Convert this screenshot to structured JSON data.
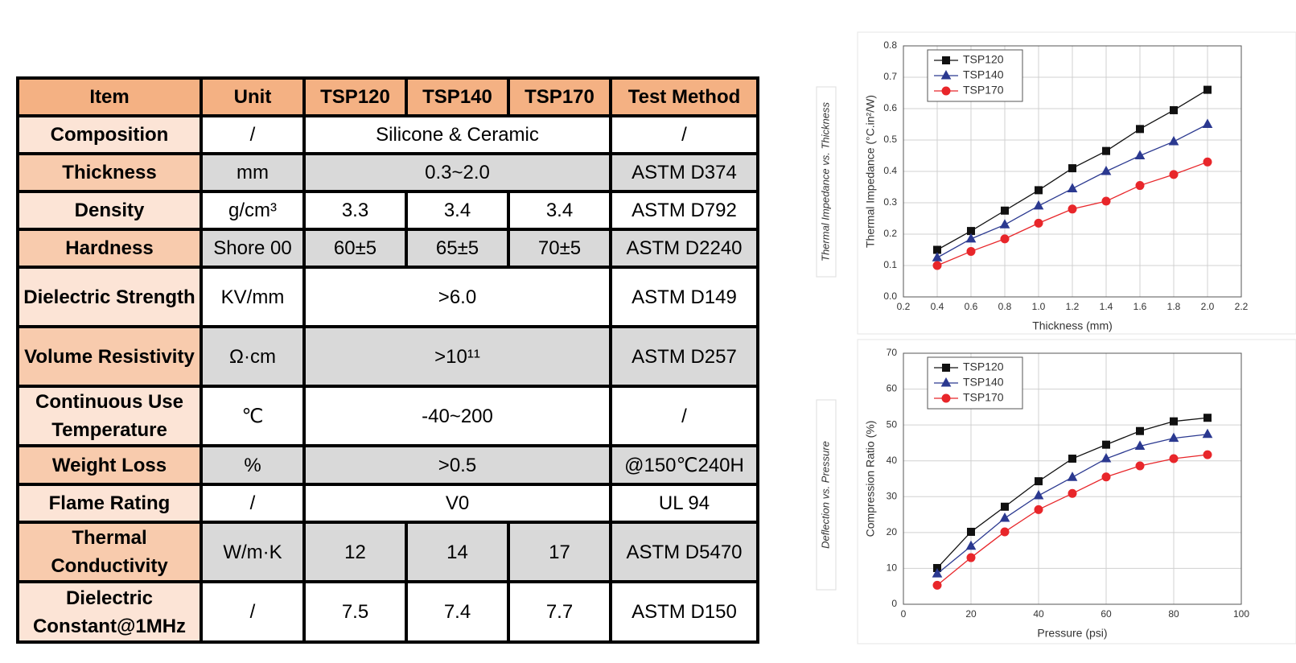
{
  "table": {
    "header": [
      "Item",
      "Unit",
      "TSP120",
      "TSP140",
      "TSP170",
      "Test Method"
    ],
    "rows": [
      [
        "Composition",
        "/",
        "Silicone & Ceramic",
        "/"
      ],
      [
        "Thickness",
        "mm",
        "0.3~2.0",
        "ASTM D374"
      ],
      [
        "Density",
        "g/cm³",
        "3.3",
        "3.4",
        "3.4",
        "ASTM D792"
      ],
      [
        "Hardness",
        "Shore 00",
        "60±5",
        "65±5",
        "70±5",
        "ASTM D2240"
      ],
      [
        "Dielectric Strength",
        "KV/mm",
        ">6.0",
        "ASTM D149"
      ],
      [
        "Volume Resistivity",
        "Ω·cm",
        ">10¹¹",
        "ASTM D257"
      ],
      [
        "Continuous Use Temperature",
        "℃",
        "-40~200",
        "/"
      ],
      [
        "Weight Loss",
        "%",
        ">0.5",
        "@150℃240H"
      ],
      [
        "Flame Rating",
        "/",
        "V0",
        "UL 94"
      ],
      [
        "Thermal Conductivity",
        "W/m·K",
        "12",
        "14",
        "17",
        "ASTM D5470"
      ],
      [
        "Dielectric Constant@1MHz",
        "/",
        "7.5",
        "7.4",
        "7.7",
        "ASTM D150"
      ]
    ]
  },
  "chart_data": [
    {
      "type": "line",
      "side_label": "Thermal Impedance vs. Thickness",
      "xlabel": "Thickness (mm)",
      "ylabel": "Thermal Impedance (°C.in²/W)",
      "x": [
        0.4,
        0.6,
        0.8,
        1.0,
        1.2,
        1.4,
        1.6,
        1.8,
        2.0
      ],
      "series": [
        {
          "name": "TSP120",
          "color": "#111111",
          "marker": "square",
          "values": [
            0.15,
            0.21,
            0.275,
            0.34,
            0.41,
            0.465,
            0.535,
            0.595,
            0.66
          ]
        },
        {
          "name": "TSP140",
          "color": "#2b3990",
          "marker": "triangle",
          "values": [
            0.125,
            0.185,
            0.23,
            0.29,
            0.345,
            0.4,
            0.45,
            0.495,
            0.55
          ]
        },
        {
          "name": "TSP170",
          "color": "#e8262a",
          "marker": "circle",
          "values": [
            0.1,
            0.145,
            0.185,
            0.235,
            0.28,
            0.305,
            0.355,
            0.39,
            0.43
          ]
        }
      ],
      "xlim": [
        0.2,
        2.2
      ],
      "xticks": [
        0.2,
        0.4,
        0.6,
        0.8,
        {
          "value": 1,
          "label": "1.0"
        },
        1.2,
        1.4,
        1.6,
        1.8,
        {
          "value": 2,
          "label": "2.0"
        },
        2.2
      ],
      "ylim": [
        0,
        0.8
      ],
      "yticks": [
        {
          "value": 0,
          "label": "0.0"
        },
        0.1,
        0.2,
        0.3,
        0.4,
        0.5,
        0.6,
        0.7,
        0.8
      ],
      "grid": true,
      "legend": "top-left"
    },
    {
      "type": "line",
      "side_label": "Deflection vs. Pressure",
      "xlabel": "Pressure (psi)",
      "ylabel": "Compression Ratio (%)",
      "x": [
        10,
        20,
        30,
        40,
        50,
        60,
        70,
        80,
        90
      ],
      "series": [
        {
          "name": "TSP120",
          "color": "#111111",
          "marker": "square",
          "values": [
            10.1,
            20.2,
            27.2,
            34.3,
            40.6,
            44.5,
            48.3,
            51,
            52
          ]
        },
        {
          "name": "TSP140",
          "color": "#2b3990",
          "marker": "triangle",
          "values": [
            8.5,
            16.2,
            24,
            30.3,
            35.4,
            40.6,
            44.1,
            46.3,
            47.4
          ]
        },
        {
          "name": "TSP170",
          "color": "#e8262a",
          "marker": "circle",
          "values": [
            5.3,
            13,
            20.2,
            26.4,
            30.9,
            35.5,
            38.6,
            40.6,
            41.7
          ]
        }
      ],
      "xlim": [
        0,
        100
      ],
      "xticks": [
        0,
        20,
        40,
        60,
        80,
        100
      ],
      "ylim": [
        0,
        70
      ],
      "yticks": [
        0,
        10,
        20,
        30,
        40,
        50,
        60,
        70
      ],
      "grid": true,
      "legend": "top-left"
    }
  ]
}
